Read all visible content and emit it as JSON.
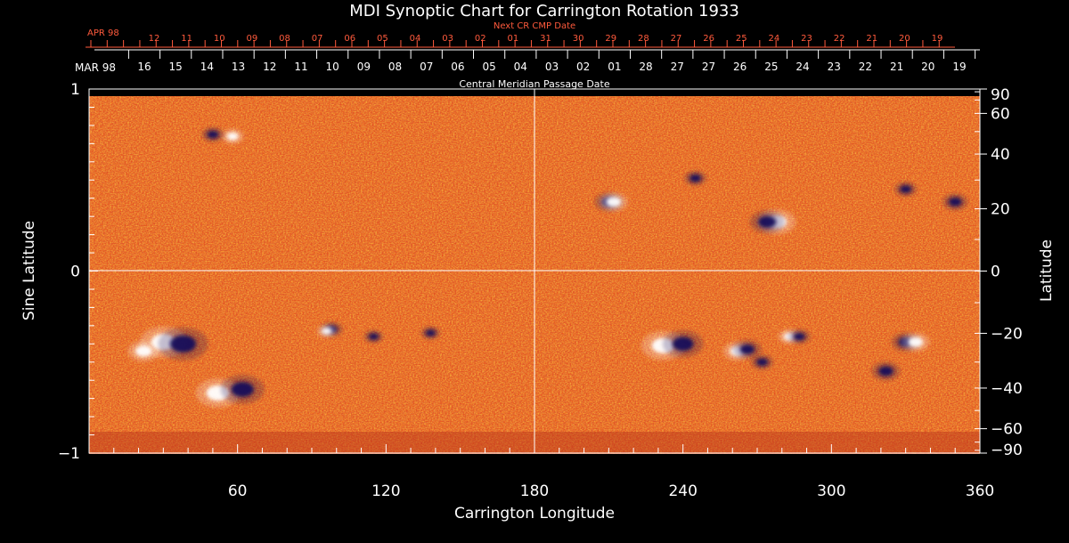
{
  "chart_data": {
    "type": "heatmap",
    "title": "MDI Synoptic Chart for Carrington Rotation 1933",
    "xlabel": "Carrington Longitude",
    "ylabel_left": "Sine Latitude",
    "ylabel_right": "Latitude",
    "xlim": [
      0,
      360
    ],
    "ylim": [
      -1,
      1
    ],
    "x_ticks": [
      60,
      120,
      180,
      240,
      300,
      360
    ],
    "y_ticks_left": [
      -1,
      0,
      1
    ],
    "y_ticks_right": [
      90,
      60,
      40,
      20,
      0,
      -20,
      -40,
      -60,
      -90
    ],
    "y_ticks_left_labels": [
      "−1",
      "0",
      "1"
    ],
    "y_ticks_right_labels": [
      "90",
      "60",
      "40",
      "20",
      "0",
      "−20",
      "−40",
      "−60",
      "−90"
    ],
    "cmp_axis_label": "Central Meridian Passage Date",
    "cmp_month_label": "MAR 98",
    "cmp_dates": [
      "16",
      "15",
      "14",
      "13",
      "12",
      "11",
      "10",
      "09",
      "08",
      "07",
      "06",
      "05",
      "04",
      "03",
      "02",
      "01",
      "28",
      "27",
      "27",
      "26",
      "25",
      "24",
      "23",
      "22",
      "21",
      "20",
      "19"
    ],
    "next_cr_label": "Next CR CMP Date",
    "next_cr_month_label": "APR 98",
    "next_cr_dates": [
      "12",
      "11",
      "10",
      "09",
      "08",
      "07",
      "06",
      "05",
      "04",
      "03",
      "02",
      "01",
      "31",
      "30",
      "29",
      "28",
      "27",
      "26",
      "25",
      "24",
      "23",
      "22",
      "21",
      "20",
      "19"
    ],
    "colors": {
      "background": "#000000",
      "field_base": "#e8531c",
      "positive_polarity": "#ffffff",
      "negative_polarity": "#14105a",
      "grid": "#ffffff"
    },
    "active_regions": [
      {
        "lon": 30,
        "sinlat": -0.39,
        "polarity": "positive",
        "size": 1.2
      },
      {
        "lon": 38,
        "sinlat": -0.4,
        "polarity": "negative",
        "size": 1.3
      },
      {
        "lon": 22,
        "sinlat": -0.44,
        "polarity": "positive",
        "size": 0.7
      },
      {
        "lon": 52,
        "sinlat": -0.67,
        "polarity": "positive",
        "size": 1.1
      },
      {
        "lon": 62,
        "sinlat": -0.65,
        "polarity": "negative",
        "size": 1.1
      },
      {
        "lon": 98,
        "sinlat": -0.32,
        "polarity": "negative",
        "size": 0.4
      },
      {
        "lon": 96,
        "sinlat": -0.33,
        "polarity": "positive",
        "size": 0.3
      },
      {
        "lon": 115,
        "sinlat": -0.36,
        "polarity": "negative",
        "size": 0.3
      },
      {
        "lon": 138,
        "sinlat": -0.34,
        "polarity": "negative",
        "size": 0.3
      },
      {
        "lon": 232,
        "sinlat": -0.41,
        "polarity": "positive",
        "size": 1.1
      },
      {
        "lon": 240,
        "sinlat": -0.4,
        "polarity": "negative",
        "size": 1.0
      },
      {
        "lon": 262,
        "sinlat": -0.44,
        "polarity": "positive",
        "size": 0.6
      },
      {
        "lon": 266,
        "sinlat": -0.43,
        "polarity": "negative",
        "size": 0.6
      },
      {
        "lon": 272,
        "sinlat": -0.5,
        "polarity": "negative",
        "size": 0.4
      },
      {
        "lon": 283,
        "sinlat": -0.36,
        "polarity": "positive",
        "size": 0.4
      },
      {
        "lon": 287,
        "sinlat": -0.36,
        "polarity": "negative",
        "size": 0.4
      },
      {
        "lon": 330,
        "sinlat": -0.39,
        "polarity": "negative",
        "size": 0.6
      },
      {
        "lon": 334,
        "sinlat": -0.39,
        "polarity": "positive",
        "size": 0.6
      },
      {
        "lon": 322,
        "sinlat": -0.55,
        "polarity": "negative",
        "size": 0.6
      },
      {
        "lon": 210,
        "sinlat": 0.38,
        "polarity": "negative",
        "size": 0.6
      },
      {
        "lon": 212,
        "sinlat": 0.38,
        "polarity": "positive",
        "size": 0.6
      },
      {
        "lon": 278,
        "sinlat": 0.27,
        "polarity": "positive",
        "size": 0.9
      },
      {
        "lon": 274,
        "sinlat": 0.27,
        "polarity": "negative",
        "size": 0.8
      },
      {
        "lon": 350,
        "sinlat": 0.38,
        "polarity": "negative",
        "size": 0.5
      },
      {
        "lon": 330,
        "sinlat": 0.45,
        "polarity": "negative",
        "size": 0.4
      },
      {
        "lon": 245,
        "sinlat": 0.51,
        "polarity": "negative",
        "size": 0.4
      },
      {
        "lon": 58,
        "sinlat": 0.74,
        "polarity": "positive",
        "size": 0.4
      },
      {
        "lon": 50,
        "sinlat": 0.75,
        "polarity": "negative",
        "size": 0.4
      }
    ]
  }
}
